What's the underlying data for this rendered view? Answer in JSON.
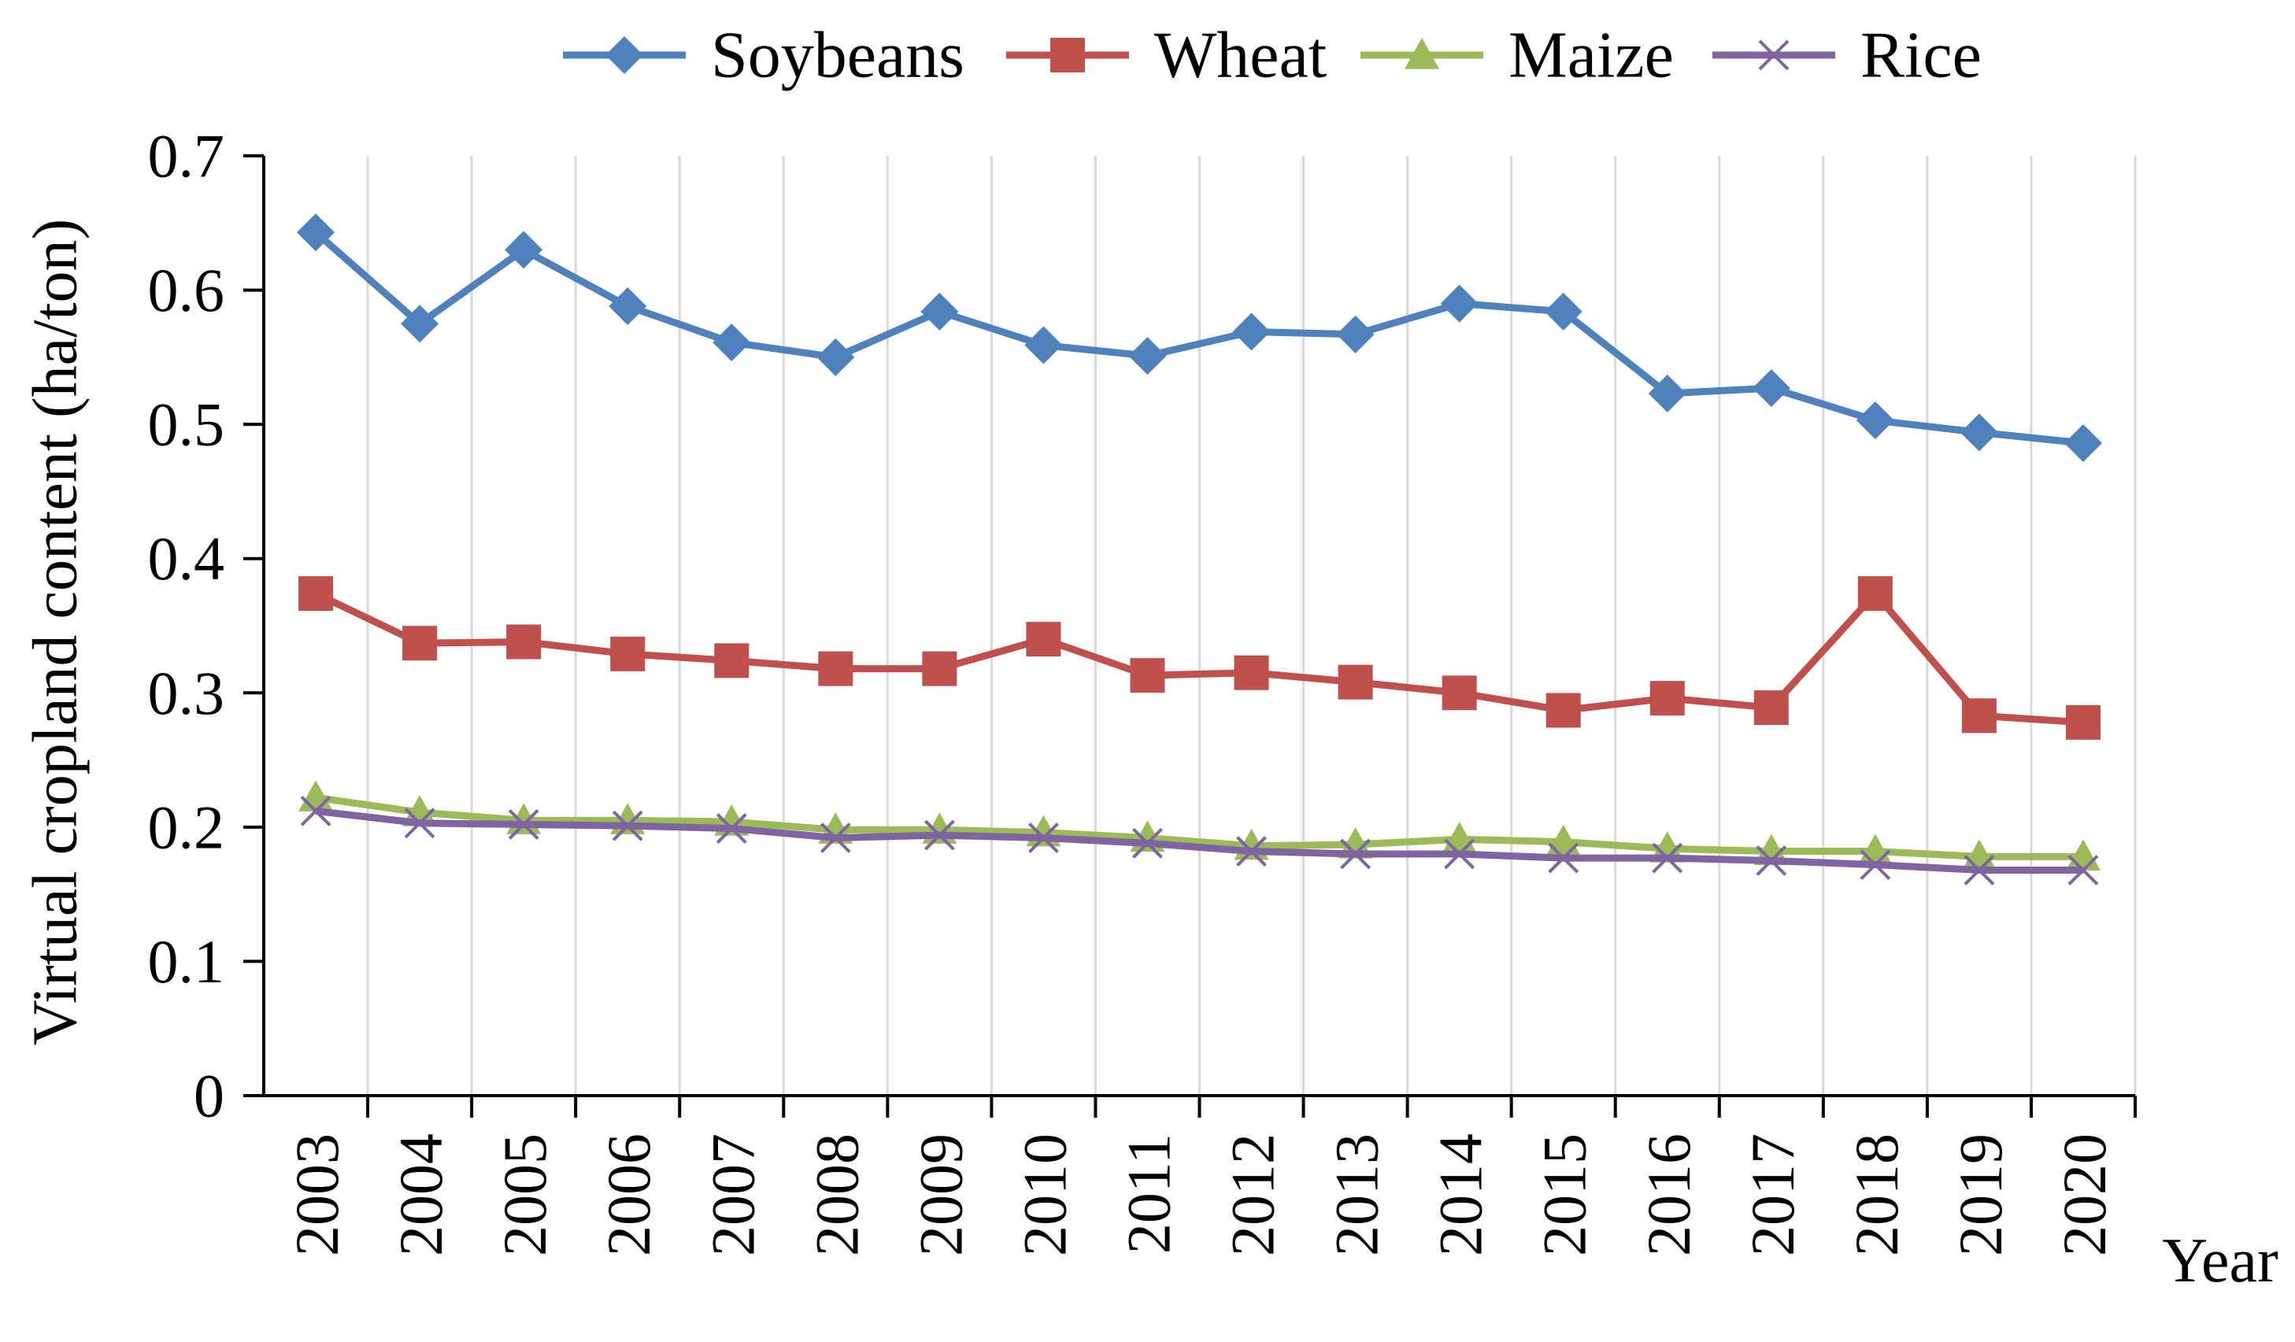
{
  "chart_data": {
    "type": "line",
    "title": "",
    "xlabel": "Year",
    "ylabel": "Virtual cropland content (ha/ton)",
    "ylim": [
      0,
      0.7
    ],
    "yticks": [
      0,
      0.1,
      0.2,
      0.3,
      0.4,
      0.5,
      0.6,
      0.7
    ],
    "ytick_labels": [
      "0",
      "0.1",
      "0.2",
      "0.3",
      "0.4",
      "0.5",
      "0.6",
      "0.7"
    ],
    "grid": "vertical",
    "legend_position": "top",
    "categories": [
      "2003",
      "2004",
      "2005",
      "2006",
      "2007",
      "2008",
      "2009",
      "2010",
      "2011",
      "2012",
      "2013",
      "2014",
      "2015",
      "2016",
      "2017",
      "2018",
      "2019",
      "2020"
    ],
    "series": [
      {
        "name": "Soybeans",
        "color": "#4f81bd",
        "marker": "diamond",
        "values": [
          0.643,
          0.575,
          0.63,
          0.588,
          0.561,
          0.55,
          0.584,
          0.559,
          0.551,
          0.569,
          0.567,
          0.59,
          0.584,
          0.523,
          0.527,
          0.503,
          0.494,
          0.486
        ]
      },
      {
        "name": "Wheat",
        "color": "#c0504d",
        "marker": "square",
        "values": [
          0.374,
          0.337,
          0.338,
          0.329,
          0.324,
          0.318,
          0.318,
          0.34,
          0.313,
          0.315,
          0.308,
          0.3,
          0.287,
          0.296,
          0.289,
          0.374,
          0.283,
          0.278
        ]
      },
      {
        "name": "Maize",
        "color": "#9bbb59",
        "marker": "triangle",
        "values": [
          0.222,
          0.211,
          0.205,
          0.205,
          0.204,
          0.198,
          0.198,
          0.196,
          0.192,
          0.186,
          0.187,
          0.191,
          0.189,
          0.184,
          0.182,
          0.182,
          0.178,
          0.178
        ]
      },
      {
        "name": "Rice",
        "color": "#8064a2",
        "marker": "x",
        "values": [
          0.212,
          0.203,
          0.202,
          0.201,
          0.199,
          0.192,
          0.194,
          0.192,
          0.188,
          0.182,
          0.18,
          0.18,
          0.177,
          0.177,
          0.175,
          0.172,
          0.168,
          0.168
        ]
      }
    ]
  }
}
